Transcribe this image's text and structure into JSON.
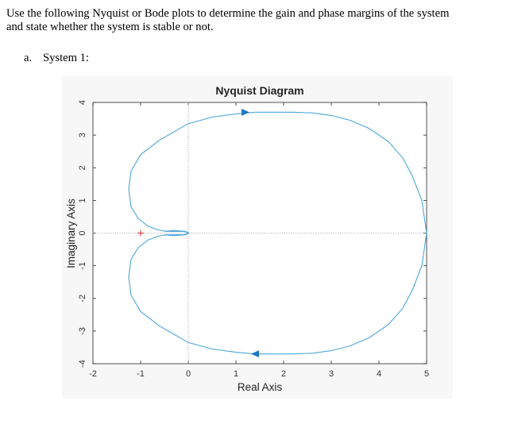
{
  "question": {
    "line1": "Use the following Nyquist or Bode plots to determine the gain and phase margins of the system",
    "line2": "and state whether the system is stable or not."
  },
  "item": {
    "number": "a.",
    "label": "System 1:"
  },
  "chart_data": {
    "type": "line",
    "title": "Nyquist Diagram",
    "xlabel": "Real Axis",
    "ylabel": "Imaginary Axis",
    "xlim": [
      -2,
      5
    ],
    "ylim": [
      -4,
      4
    ],
    "xticks": [
      -2,
      -1,
      0,
      1,
      2,
      3,
      4,
      5
    ],
    "yticks": [
      -4,
      -3,
      -2,
      -1,
      0,
      1,
      2,
      3,
      4
    ],
    "grid": false,
    "line_color": "#4da6d9",
    "critical_point": {
      "x": -1,
      "y": 0,
      "marker": "+",
      "color": "#e03030"
    },
    "zero_lines": true,
    "series": [
      {
        "x": [
          5,
          4.9,
          4.7,
          4.5,
          4.2,
          3.8,
          3.4,
          3.0,
          2.6,
          2.2,
          1.8,
          1.4,
          1.0,
          0.5,
          0.0,
          -0.3,
          -0.6,
          -1.0,
          -1.2,
          -1.25,
          -1.2,
          -1.05,
          -0.85,
          -0.65,
          -0.45,
          -0.3,
          -0.1,
          0.0,
          -0.05,
          -0.3,
          -0.5
        ],
        "y": [
          0,
          1.0,
          1.75,
          2.3,
          2.8,
          3.2,
          3.45,
          3.6,
          3.68,
          3.7,
          3.7,
          3.7,
          3.65,
          3.55,
          3.35,
          3.1,
          2.85,
          2.4,
          1.9,
          1.35,
          0.8,
          0.45,
          0.22,
          0.1,
          0.05,
          0.05,
          0.05,
          0.02,
          -0.05,
          -0.08,
          -0.05
        ]
      },
      {
        "x": [
          5,
          4.9,
          4.7,
          4.5,
          4.2,
          3.8,
          3.4,
          3.0,
          2.6,
          2.2,
          1.8,
          1.4,
          1.0,
          0.5,
          0.0,
          -0.3,
          -0.6,
          -1.0,
          -1.2,
          -1.25,
          -1.2,
          -1.05,
          -0.85,
          -0.65,
          -0.45,
          -0.3,
          -0.1,
          0.0,
          -0.05,
          -0.3,
          -0.5
        ],
        "y": [
          0,
          -1.0,
          -1.75,
          -2.3,
          -2.8,
          -3.2,
          -3.45,
          -3.6,
          -3.68,
          -3.7,
          -3.7,
          -3.7,
          -3.65,
          -3.55,
          -3.35,
          -3.1,
          -2.85,
          -2.4,
          -1.9,
          -1.35,
          -0.8,
          -0.45,
          -0.22,
          -0.1,
          -0.05,
          -0.05,
          -0.05,
          -0.02,
          0.05,
          0.08,
          0.05
        ]
      }
    ],
    "arrows": [
      {
        "x": 1.2,
        "y": 3.7,
        "direction": "right"
      },
      {
        "x": 1.4,
        "y": -3.7,
        "direction": "left"
      }
    ]
  }
}
